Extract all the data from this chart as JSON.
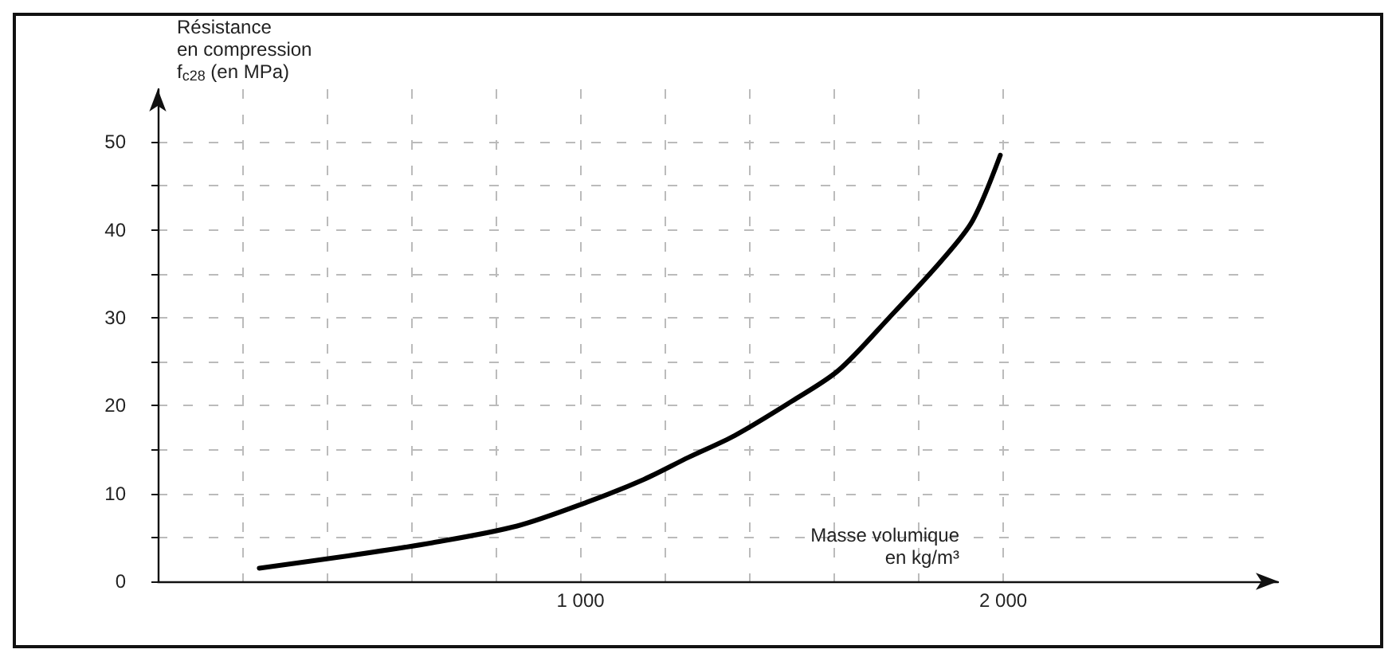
{
  "chart_data": {
    "type": "line",
    "xlabel": "Masse volumique\nen kg/m³",
    "ylabel": "Résistance\nen compression\nf$_{c28}$ (en MPa)",
    "series": [
      {
        "color": "#000000",
        "x": [
          240,
          450,
          650,
          850,
          1015,
          1150,
          1255,
          1365,
          1500,
          1610,
          1730,
          1854,
          1927,
          1993
        ],
        "values": [
          1.5,
          2.9,
          4.4,
          6.3,
          9.0,
          11.6,
          14.1,
          16.6,
          20.5,
          24,
          30,
          36.5,
          41,
          48.5
        ]
      }
    ],
    "xlim": [
      0,
      2650
    ],
    "ylim": [
      0,
      56
    ],
    "xticks": [
      {
        "value": 200,
        "label": null
      },
      {
        "value": 400,
        "label": null
      },
      {
        "value": 600,
        "label": null
      },
      {
        "value": 800,
        "label": null
      },
      {
        "value": 1000,
        "label": "1 000"
      },
      {
        "value": 1200,
        "label": null
      },
      {
        "value": 1400,
        "label": null
      },
      {
        "value": 1600,
        "label": null
      },
      {
        "value": 1800,
        "label": null
      },
      {
        "value": 2000,
        "label": "2 000"
      }
    ],
    "yticks": [
      0,
      {
        "value": 5,
        "label": null
      },
      10,
      {
        "value": 15,
        "label": null
      },
      20,
      {
        "value": 25,
        "label": null
      },
      30,
      {
        "value": 35,
        "label": null
      },
      40,
      {
        "value": 45,
        "label": null
      },
      50
    ],
    "grid": true,
    "marker": "none",
    "line_style": "solid"
  }
}
